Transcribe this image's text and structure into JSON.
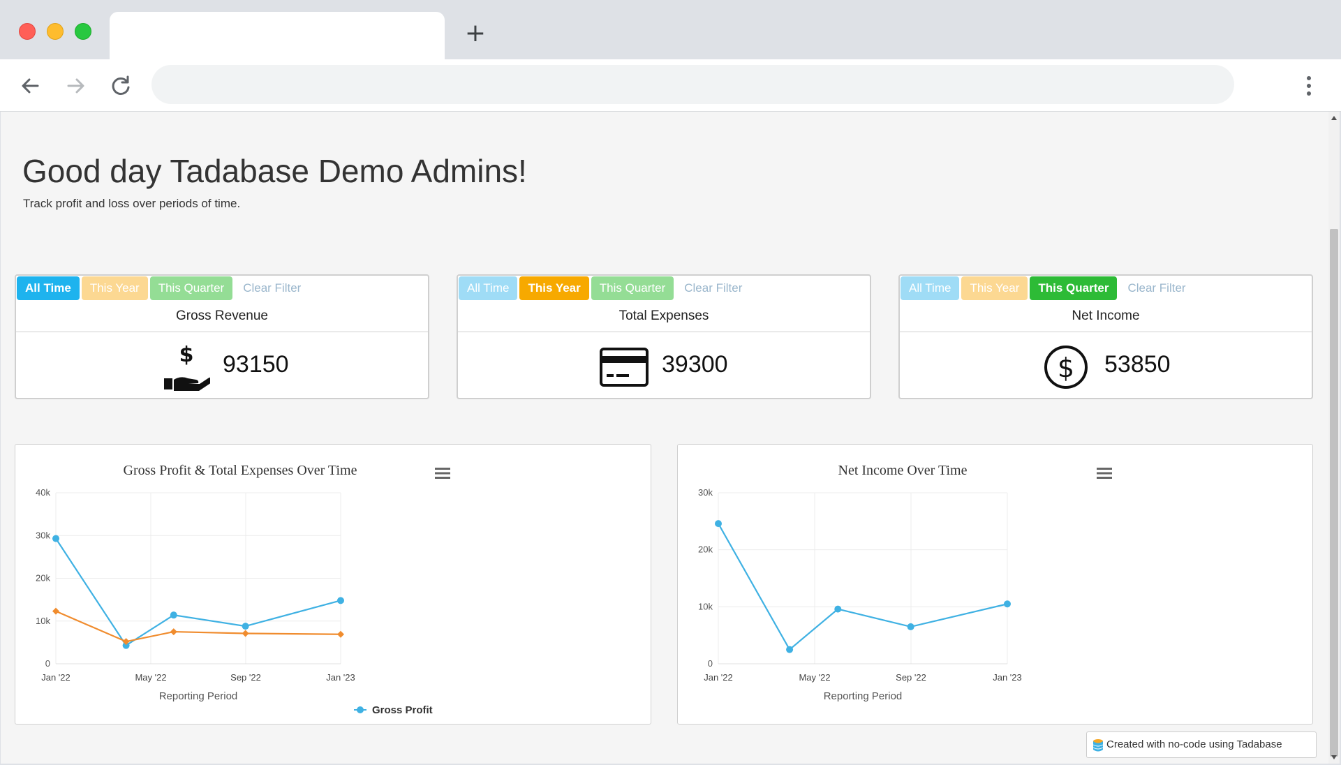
{
  "browser": {
    "new_tab_label": "+"
  },
  "page": {
    "greeting": "Good day Tadabase Demo Admins!",
    "subtitle": "Track profit and loss over periods of time."
  },
  "filters": {
    "all_time": "All Time",
    "this_year": "This Year",
    "this_quarter": "This Quarter",
    "clear_filter": "Clear Filter"
  },
  "cards": [
    {
      "title": "Gross Revenue",
      "value": "93150",
      "icon": "hand-dollar-icon",
      "active_filter": "All Time"
    },
    {
      "title": "Total Expenses",
      "value": "39300",
      "icon": "credit-card-icon",
      "active_filter": "This Year"
    },
    {
      "title": "Net Income",
      "value": "53850",
      "icon": "dollar-circle-icon",
      "active_filter": "This Quarter"
    }
  ],
  "colors": {
    "series_blue": "#3fb1e3",
    "series_orange": "#f08c2e"
  },
  "chart_data": [
    {
      "type": "line",
      "title": "Gross Profit & Total Expenses Over Time",
      "xlabel": "Reporting Period",
      "ylabel": "",
      "x_ticks": [
        "Jan '22",
        "May '22",
        "Sep '22",
        "Jan '23"
      ],
      "y_ticks": [
        "0",
        "10k",
        "20k",
        "30k",
        "40k"
      ],
      "ylim": [
        0,
        40000
      ],
      "xlim": [
        "2022-01-01",
        "2023-01-01"
      ],
      "grid": true,
      "legend": "bottom-center",
      "series": [
        {
          "name": "Gross Profit",
          "marker": "circle",
          "points": [
            {
              "x": "2022-01-01",
              "y": 29300
            },
            {
              "x": "2022-04-01",
              "y": 4300
            },
            {
              "x": "2022-06-01",
              "y": 11400
            },
            {
              "x": "2022-09-01",
              "y": 8800
            },
            {
              "x": "2023-01-01",
              "y": 14800
            }
          ]
        },
        {
          "marker": "diamond",
          "points": [
            {
              "x": "2022-01-01",
              "y": 12300
            },
            {
              "x": "2022-04-01",
              "y": 5200
            },
            {
              "x": "2022-06-01",
              "y": 7500
            },
            {
              "x": "2022-09-01",
              "y": 7100
            },
            {
              "x": "2023-01-01",
              "y": 6900
            }
          ]
        }
      ]
    },
    {
      "type": "line",
      "title": "Net Income Over Time",
      "xlabel": "Reporting Period",
      "ylabel": "",
      "x_ticks": [
        "Jan '22",
        "May '22",
        "Sep '22",
        "Jan '23"
      ],
      "y_ticks": [
        "0",
        "10k",
        "20k",
        "30k"
      ],
      "ylim": [
        0,
        30000
      ],
      "xlim": [
        "2022-01-01",
        "2023-01-01"
      ],
      "grid": true,
      "legend": "none",
      "series": [
        {
          "marker": "circle",
          "points": [
            {
              "x": "2022-01-01",
              "y": 24600
            },
            {
              "x": "2022-04-01",
              "y": 2500
            },
            {
              "x": "2022-06-01",
              "y": 9600
            },
            {
              "x": "2022-09-01",
              "y": 6500
            },
            {
              "x": "2023-01-01",
              "y": 10500
            }
          ]
        }
      ]
    }
  ],
  "footer": {
    "badge_text": "Created with no-code using Tadabase"
  }
}
